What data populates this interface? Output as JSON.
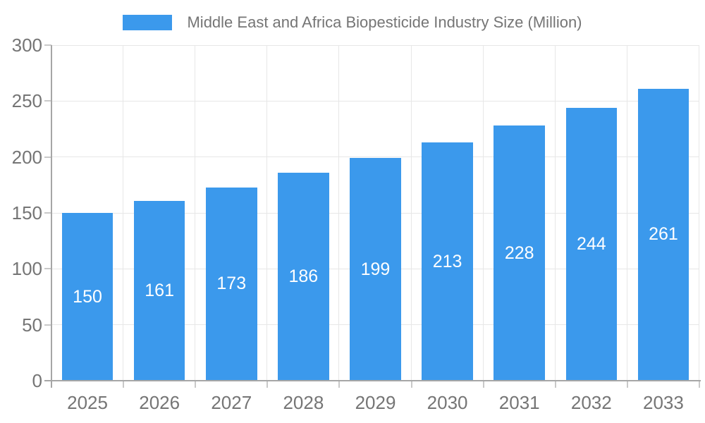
{
  "chart_data": {
    "type": "bar",
    "title": "Middle East and Africa Biopesticide Industry Size (Million)",
    "categories": [
      "2025",
      "2026",
      "2027",
      "2028",
      "2029",
      "2030",
      "2031",
      "2032",
      "2033"
    ],
    "values": [
      150,
      161,
      173,
      186,
      199,
      213,
      228,
      244,
      261
    ],
    "series": [
      {
        "name": "Middle East and Africa Biopesticide Industry Size (Million)",
        "values": [
          150,
          161,
          173,
          186,
          199,
          213,
          228,
          244,
          261
        ]
      }
    ],
    "xlabel": "",
    "ylabel": "",
    "ylim": [
      0,
      300
    ],
    "yticks": [
      0,
      50,
      100,
      150,
      200,
      250,
      300
    ],
    "grid": true,
    "legend_position": "top",
    "bar_labels_shown": true,
    "colors": {
      "bar": "#3B99EC",
      "bar_label": "#ffffff",
      "axis": "#a6a6a6",
      "grid": "#e7e7e7",
      "tick": "#c9c9c9",
      "label": "#757575"
    }
  }
}
